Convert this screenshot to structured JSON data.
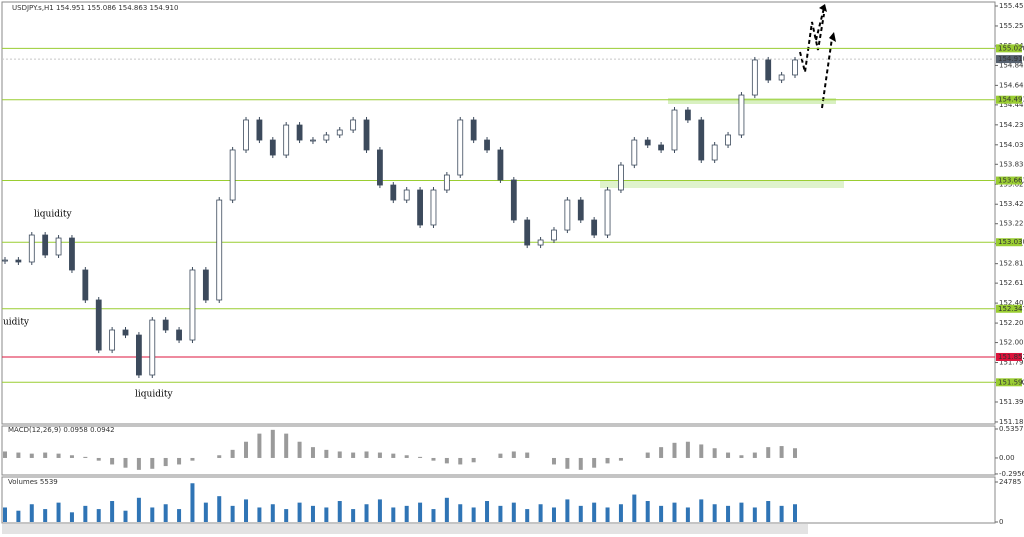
{
  "chart_data": {
    "type": "candlestick",
    "title": "USDJPY.s,H1 154.951 155.086 154.863 154.910",
    "color": "#3c4a5c",
    "values": [
      152.847,
      152.827,
      153.104,
      152.899,
      153.073,
      152.745,
      152.437,
      151.923,
      152.129,
      152.077,
      151.667,
      152.231,
      152.129,
      152.026,
      152.745,
      152.437,
      153.463,
      153.977,
      154.285,
      154.079,
      153.925,
      154.233,
      154.079,
      154.079,
      154.131,
      154.182,
      154.285,
      153.977,
      153.617,
      153.463,
      153.566,
      153.207,
      153.566,
      153.72,
      154.285,
      154.079,
      153.977,
      153.669,
      153.258,
      153.001,
      153.053,
      153.155,
      153.463,
      153.258,
      153.104,
      153.566,
      153.822,
      154.079,
      154.028,
      153.977,
      154.387,
      154.285,
      153.874,
      154.028,
      154.131,
      154.541,
      154.901,
      154.695,
      154.747,
      154.901
    ],
    "ylim": [
      151.164,
      155.496
    ],
    "yticks": [
      155.455,
      {
        "value": 155.25,
        "label": "155.250"
      },
      155.045,
      154.845,
      {
        "value": 154.64,
        "label": "154.640"
      },
      {
        "value": 154.44,
        "label": "154.440"
      },
      154.235,
      {
        "value": 154.03,
        "label": "154.030"
      },
      {
        "value": 153.83,
        "label": "153.830"
      },
      153.625,
      {
        "value": 153.42,
        "label": "153.420"
      },
      {
        "value": 153.22,
        "label": "153.220"
      },
      153.015,
      {
        "value": 152.81,
        "label": "152.810"
      },
      {
        "value": 152.61,
        "label": "152.610"
      },
      152.405,
      {
        "value": 152.2,
        "label": "152.200"
      },
      {
        "value": 152,
        "label": "152.000"
      },
      151.795,
      {
        "value": 151.59,
        "label": "151.590"
      },
      {
        "value": 151.39,
        "label": "151.390"
      },
      151.185
    ],
    "levels": [
      {
        "value": 155.02,
        "label": "155.020",
        "color": "#9acd32"
      },
      {
        "value": 154.493,
        "label": "154.493",
        "color": "#9acd32"
      },
      {
        "value": 153.663,
        "label": "153.663",
        "color": "#9acd32"
      },
      {
        "value": 153.03,
        "label": "153.030",
        "color": "#9acd32"
      },
      {
        "value": 152.347,
        "label": "152.347",
        "color": "#9acd32"
      },
      {
        "value": 151.852,
        "label": "151.852",
        "color": "#dc143c"
      },
      {
        "value": 151.592,
        "label": "151.592",
        "color": "#9acd32"
      }
    ],
    "current": {
      "value": 154.91,
      "label": "154.910"
    },
    "annotations": [
      "liquidity",
      "uidity",
      "liquidity"
    ],
    "macd": {
      "title": "MACD(12,26,9) 0.0958 0.0942",
      "color": "#9a9a9a",
      "values": [
        0.12,
        0.1,
        0.08,
        0.1,
        0.08,
        0.05,
        0.02,
        -0.05,
        -0.12,
        -0.18,
        -0.22,
        -0.2,
        -0.15,
        -0.12,
        -0.05,
        0.0,
        0.05,
        0.15,
        0.3,
        0.45,
        0.52,
        0.45,
        0.3,
        0.2,
        0.15,
        0.12,
        0.1,
        0.12,
        0.1,
        0.08,
        0.05,
        0.02,
        -0.05,
        -0.1,
        -0.12,
        -0.08,
        0.0,
        0.08,
        0.12,
        0.1,
        0.0,
        -0.12,
        -0.2,
        -0.22,
        -0.18,
        -0.1,
        -0.05,
        0.0,
        0.1,
        0.2,
        0.28,
        0.3,
        0.25,
        0.18,
        0.1,
        0.05,
        0.1,
        0.2,
        0.22,
        0.18
      ],
      "ylim": [
        -0.315,
        0.591
      ],
      "yticks": [
        0.5357,
        {
          "value": 0,
          "label": "0.00"
        },
        -0.2956
      ]
    },
    "volume": {
      "title": "Volumes 5539",
      "color": "#2f74b5",
      "values": [
        9000,
        7000,
        11000,
        8000,
        12000,
        6000,
        10000,
        8000,
        13000,
        7000,
        15000,
        9000,
        11000,
        8000,
        24000,
        12000,
        16000,
        10000,
        14000,
        9000,
        11000,
        8000,
        12000,
        10000,
        9000,
        13000,
        8000,
        11000,
        14000,
        9000,
        10000,
        12000,
        8000,
        15000,
        11000,
        9000,
        13000,
        10000,
        12000,
        8000,
        11000,
        9000,
        14000,
        10000,
        12000,
        9000,
        11000,
        17000,
        13000,
        10000,
        12000,
        9000,
        14000,
        11000,
        10000,
        12000,
        9000,
        13000,
        10000,
        11000
      ],
      "ylim": [
        0,
        27260
      ],
      "yticks": [
        24785,
        0
      ]
    }
  }
}
